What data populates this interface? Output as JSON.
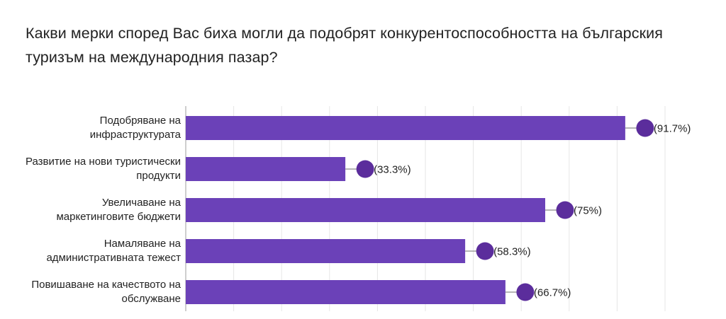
{
  "colors": {
    "bar": "#6b41b8",
    "marker": "#5b2d9c",
    "grid": "#e6e6e6",
    "axis": "#bdbdbd",
    "connector": "#8a8a8a",
    "text": "#222222"
  },
  "chart_data": {
    "type": "bar",
    "orientation": "horizontal",
    "title": "Какви мерки според Вас биха могли да подобрят конкурентоспособността на българския туризъм на международния пазар?",
    "categories": [
      [
        "Подобряване на",
        "инфраструктурата"
      ],
      [
        "Развитие на нови туристически",
        "продукти"
      ],
      [
        "Увеличаване на",
        "маркетинговите бюджети"
      ],
      [
        "Намаляване на",
        "административната тежест"
      ],
      [
        "Повишаване на качеството на",
        "обслужване"
      ]
    ],
    "values": [
      91.7,
      33.3,
      75,
      58.3,
      66.7
    ],
    "value_labels": [
      "(91.7%)",
      "(33.3%)",
      "(75%)",
      "(58.3%)",
      "(66.7%)"
    ],
    "xlim": [
      0,
      100
    ],
    "grid": true,
    "legend": "none"
  }
}
